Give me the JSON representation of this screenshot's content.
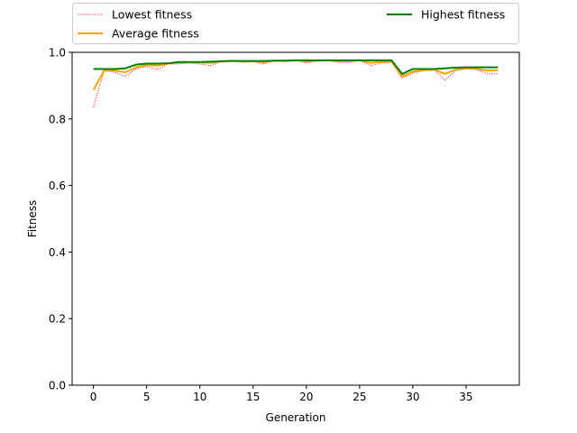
{
  "chart_data": {
    "type": "line",
    "xlabel": "Generation",
    "ylabel": "Fitness",
    "xlim": [
      -2,
      40
    ],
    "ylim": [
      0,
      1.0
    ],
    "xticks": [
      0,
      5,
      10,
      15,
      20,
      25,
      30,
      35
    ],
    "yticks": [
      0.0,
      0.2,
      0.4,
      0.6,
      0.8,
      1.0
    ],
    "ytick_labels": [
      "0.0",
      "0.2",
      "0.4",
      "0.6",
      "0.8",
      "1.0"
    ],
    "grid": false,
    "legend_placement": "above-plot",
    "x": [
      0,
      1,
      2,
      3,
      4,
      5,
      6,
      7,
      8,
      9,
      10,
      11,
      12,
      13,
      14,
      15,
      16,
      17,
      18,
      19,
      20,
      21,
      22,
      23,
      24,
      25,
      26,
      27,
      28,
      29,
      30,
      31,
      32,
      33,
      34,
      35,
      36,
      37,
      38
    ],
    "series": [
      {
        "name": "Lowest fitness",
        "color": "#ff0000",
        "style": "dotted",
        "values": [
          0.835,
          0.945,
          0.94,
          0.928,
          0.95,
          0.958,
          0.948,
          0.965,
          0.965,
          0.968,
          0.965,
          0.96,
          0.972,
          0.975,
          0.97,
          0.972,
          0.965,
          0.975,
          0.972,
          0.976,
          0.968,
          0.974,
          0.976,
          0.97,
          0.97,
          0.976,
          0.96,
          0.968,
          0.97,
          0.922,
          0.938,
          0.945,
          0.948,
          0.916,
          0.945,
          0.95,
          0.948,
          0.935,
          0.936
        ]
      },
      {
        "name": "Average fitness",
        "color": "#ffa500",
        "style": "solid",
        "values": [
          0.887,
          0.945,
          0.945,
          0.94,
          0.955,
          0.962,
          0.96,
          0.966,
          0.968,
          0.97,
          0.97,
          0.968,
          0.973,
          0.975,
          0.973,
          0.974,
          0.97,
          0.975,
          0.974,
          0.976,
          0.973,
          0.975,
          0.976,
          0.974,
          0.974,
          0.976,
          0.968,
          0.972,
          0.972,
          0.928,
          0.942,
          0.946,
          0.948,
          0.935,
          0.948,
          0.952,
          0.95,
          0.945,
          0.946
        ]
      },
      {
        "name": "Highest fitness",
        "color": "#008000",
        "style": "solid",
        "values": [
          0.95,
          0.95,
          0.95,
          0.952,
          0.963,
          0.966,
          0.966,
          0.967,
          0.971,
          0.971,
          0.971,
          0.972,
          0.973,
          0.974,
          0.974,
          0.974,
          0.974,
          0.975,
          0.975,
          0.976,
          0.976,
          0.976,
          0.976,
          0.976,
          0.976,
          0.976,
          0.976,
          0.976,
          0.976,
          0.935,
          0.95,
          0.95,
          0.95,
          0.952,
          0.954,
          0.955,
          0.955,
          0.955,
          0.955
        ]
      }
    ]
  }
}
